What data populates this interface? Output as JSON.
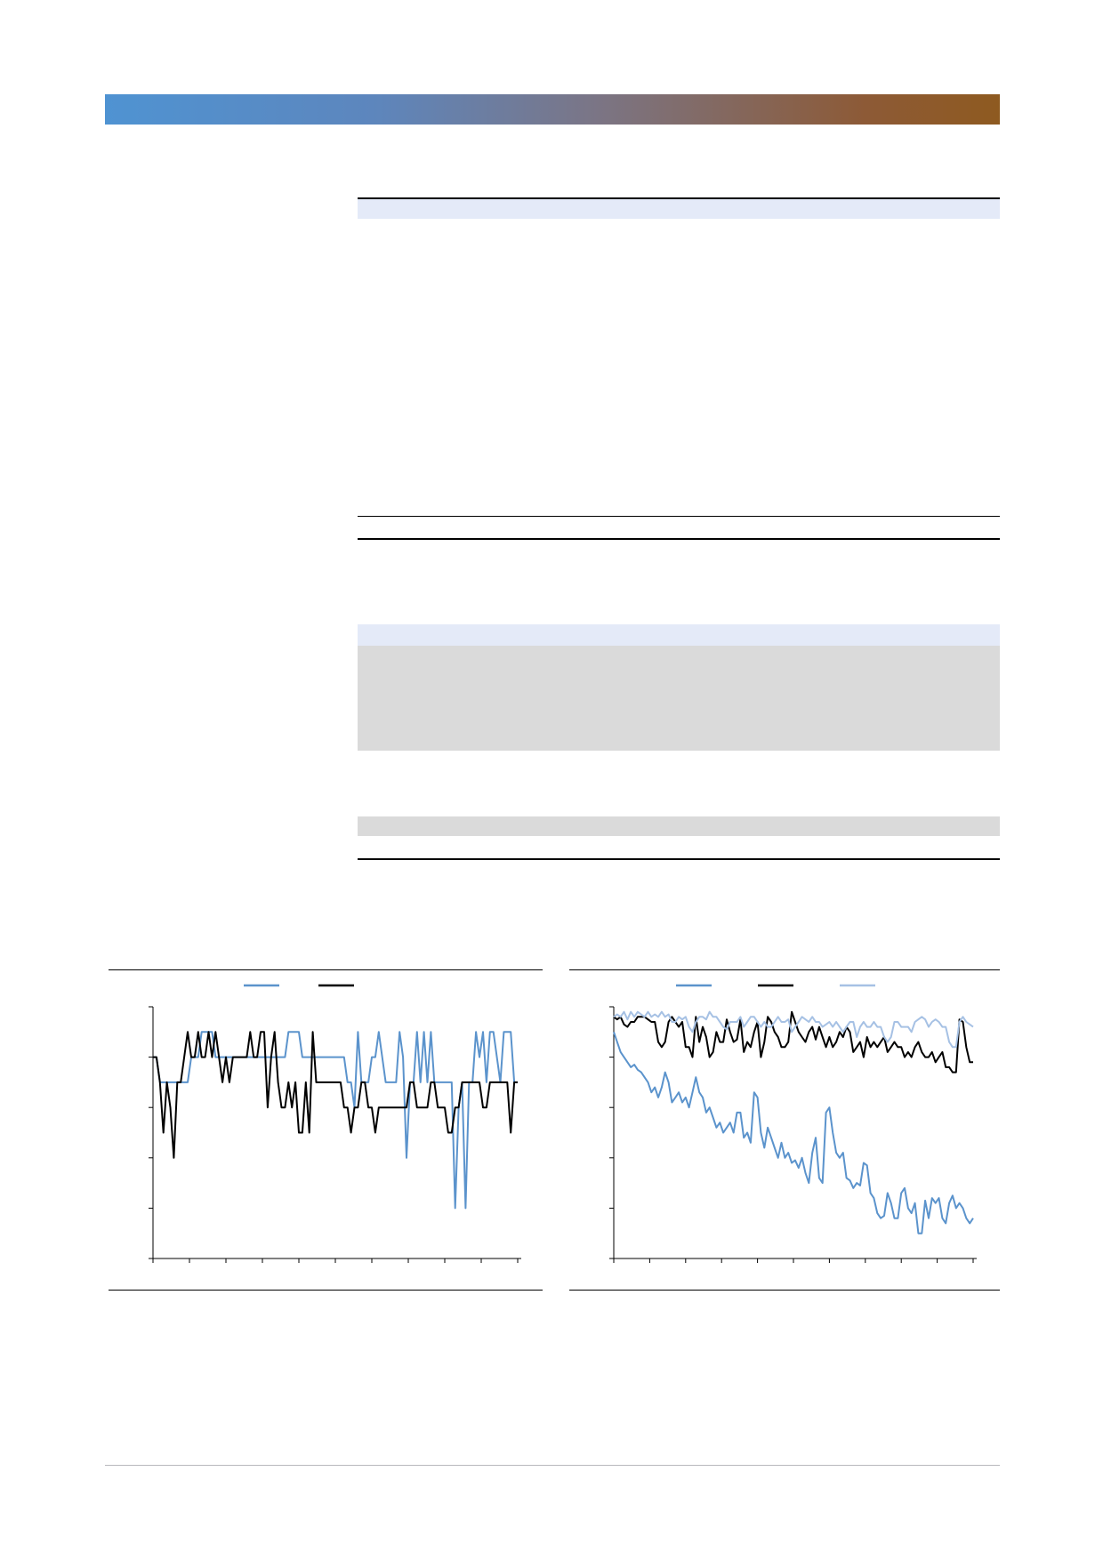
{
  "colors": {
    "header_gradient_start": "#4f93d2",
    "header_gradient_end": "#8e5a20",
    "table_header_band": "#e4eaf8",
    "table_shaded_band": "#dadada",
    "series_blue": "#5b93cc",
    "series_black": "#000000",
    "series_light_blue": "#a6c1e4",
    "footer_rule": "#b8b8bc"
  },
  "chart_data": [
    {
      "type": "line",
      "title": "",
      "xlabel": "",
      "ylabel": "",
      "x": [
        0,
        1,
        2,
        3,
        4,
        5,
        6,
        7,
        8,
        9,
        10,
        11,
        12,
        13,
        14,
        15,
        16,
        17,
        18,
        19,
        20,
        21,
        22,
        23,
        24,
        25,
        26,
        27,
        28,
        29,
        30,
        31,
        32,
        33,
        34,
        35,
        36,
        37,
        38,
        39,
        40,
        41,
        42,
        43,
        44,
        45,
        46,
        47,
        48,
        49,
        50,
        51,
        52,
        53,
        54,
        55,
        56,
        57,
        58,
        59,
        60,
        61,
        62,
        63,
        64,
        65,
        66,
        67,
        68,
        69,
        70,
        71,
        72,
        73,
        74,
        75,
        76,
        77,
        78,
        79,
        80,
        81,
        82,
        83,
        84,
        85,
        86,
        87,
        88,
        89,
        90,
        91,
        92,
        93,
        94,
        95,
        96,
        97,
        98,
        99,
        100,
        101,
        102,
        103,
        104,
        105
      ],
      "ylim": [
        0,
        5
      ],
      "x_tick_count": 11,
      "y_tick_count": 6,
      "legend": "top-center",
      "series": [
        {
          "color": "#5b93cc",
          "values": [
            4,
            4,
            3.5,
            3.5,
            3.5,
            3.5,
            3.5,
            3.5,
            3.5,
            3.5,
            3.5,
            4,
            4,
            4,
            4.5,
            4.5,
            4.5,
            4.5,
            4,
            4,
            4,
            4,
            4,
            4,
            4,
            4,
            4,
            4,
            4,
            4,
            4,
            4,
            4,
            4,
            4,
            4,
            4,
            4,
            4,
            4.5,
            4.5,
            4.5,
            4.5,
            4,
            4,
            4,
            4,
            4,
            4,
            4,
            4,
            4,
            4,
            4,
            4,
            4,
            3.5,
            3.5,
            3,
            4.5,
            3.5,
            3.5,
            3.5,
            4,
            4,
            4.5,
            4,
            3.5,
            3.5,
            3.5,
            3.5,
            4.5,
            4,
            2,
            3.5,
            3.5,
            4.5,
            3.5,
            4.5,
            3.5,
            4.5,
            3.5,
            3.5,
            3.5,
            3.5,
            3.5,
            3.5,
            1,
            3,
            3.5,
            1,
            3.5,
            3.5,
            4.5,
            4,
            4.5,
            3.5,
            4.5,
            4.5,
            4,
            3.5,
            4.5,
            4.5,
            4.5,
            3.5,
            3.5
          ],
          "label": ""
        },
        {
          "color": "#000000",
          "values": [
            4,
            4,
            3.5,
            2.5,
            3.5,
            3,
            2,
            3.5,
            3.5,
            4,
            4.5,
            4,
            4,
            4.5,
            4,
            4,
            4.5,
            4,
            4.5,
            4,
            3.5,
            4,
            3.5,
            4,
            4,
            4,
            4,
            4,
            4.5,
            4,
            4,
            4.5,
            4.5,
            3,
            4,
            4.5,
            3.5,
            3,
            3,
            3.5,
            3,
            3.5,
            2.5,
            2.5,
            3.5,
            2.5,
            4.5,
            3.5,
            3.5,
            3.5,
            3.5,
            3.5,
            3.5,
            3.5,
            3.5,
            3,
            3,
            2.5,
            3,
            3,
            3.5,
            3.5,
            3,
            3,
            2.5,
            3,
            3,
            3,
            3,
            3,
            3,
            3,
            3,
            3,
            3.5,
            3.5,
            3,
            3,
            3,
            3,
            3.5,
            3.5,
            3,
            3,
            3,
            2.5,
            2.5,
            3,
            3,
            3.5,
            3.5,
            3.5,
            3.5,
            3.5,
            3.5,
            3,
            3,
            3.5,
            3.5,
            3.5,
            3.5,
            3.5,
            3.5,
            2.5,
            3.5,
            3.5
          ],
          "label": ""
        }
      ]
    },
    {
      "type": "line",
      "title": "",
      "xlabel": "",
      "ylabel": "",
      "x": [
        0,
        1,
        2,
        3,
        4,
        5,
        6,
        7,
        8,
        9,
        10,
        11,
        12,
        13,
        14,
        15,
        16,
        17,
        18,
        19,
        20,
        21,
        22,
        23,
        24,
        25,
        26,
        27,
        28,
        29,
        30,
        31,
        32,
        33,
        34,
        35,
        36,
        37,
        38,
        39,
        40,
        41,
        42,
        43,
        44,
        45,
        46,
        47,
        48,
        49,
        50,
        51,
        52,
        53,
        54,
        55,
        56,
        57,
        58,
        59,
        60,
        61,
        62,
        63,
        64,
        65,
        66,
        67,
        68,
        69,
        70,
        71,
        72,
        73,
        74,
        75,
        76,
        77,
        78,
        79,
        80,
        81,
        82,
        83,
        84,
        85,
        86,
        87,
        88,
        89,
        90,
        91,
        92,
        93,
        94,
        95,
        96,
        97,
        98,
        99,
        100,
        101,
        102,
        103,
        104,
        105
      ],
      "ylim": [
        0,
        5
      ],
      "x_tick_count": 11,
      "y_tick_count": 6,
      "legend": "top-center",
      "series": [
        {
          "color": "#5b93cc",
          "values": [
            4.5,
            4.3,
            4.1,
            4.0,
            3.9,
            3.8,
            3.85,
            3.75,
            3.7,
            3.6,
            3.5,
            3.3,
            3.4,
            3.2,
            3.4,
            3.7,
            3.5,
            3.1,
            3.2,
            3.3,
            3.1,
            3.2,
            3.0,
            3.3,
            3.6,
            3.3,
            3.2,
            2.9,
            3.0,
            2.8,
            2.6,
            2.7,
            2.5,
            2.6,
            2.7,
            2.5,
            2.9,
            2.9,
            2.4,
            2.5,
            2.3,
            3.3,
            3.2,
            2.5,
            2.2,
            2.6,
            2.4,
            2.2,
            2.0,
            2.3,
            2.0,
            2.1,
            1.9,
            1.95,
            1.8,
            2.0,
            1.7,
            1.5,
            2.1,
            2.4,
            1.6,
            1.5,
            2.9,
            3.0,
            2.5,
            2.1,
            2.0,
            2.1,
            1.6,
            1.55,
            1.4,
            1.5,
            1.45,
            1.9,
            1.85,
            1.3,
            1.2,
            0.9,
            0.8,
            0.85,
            1.3,
            1.1,
            0.8,
            0.8,
            1.3,
            1.4,
            1.0,
            0.9,
            1.1,
            0.5,
            0.5,
            1.15,
            0.8,
            1.2,
            1.1,
            1.2,
            0.8,
            0.7,
            1.1,
            1.25,
            1.0,
            1.1,
            1.0,
            0.8,
            0.7,
            0.8
          ],
          "label": ""
        },
        {
          "color": "#000000",
          "values": [
            4.8,
            4.75,
            4.8,
            4.65,
            4.6,
            4.7,
            4.7,
            4.8,
            4.8,
            4.8,
            4.75,
            4.7,
            4.7,
            4.3,
            4.2,
            4.3,
            4.7,
            4.8,
            4.7,
            4.6,
            4.7,
            4.2,
            4.2,
            4.0,
            4.8,
            4.3,
            4.6,
            4.4,
            4.0,
            4.1,
            4.5,
            4.3,
            4.3,
            4.75,
            4.5,
            4.3,
            4.35,
            4.75,
            4.1,
            4.3,
            4.2,
            4.5,
            4.7,
            4.0,
            4.3,
            4.8,
            4.7,
            4.5,
            4.4,
            4.2,
            4.2,
            4.3,
            4.9,
            4.7,
            4.5,
            4.4,
            4.3,
            4.5,
            4.6,
            4.35,
            4.6,
            4.4,
            4.2,
            4.4,
            4.2,
            4.3,
            4.5,
            4.4,
            4.6,
            4.5,
            4.1,
            4.2,
            4.3,
            4.0,
            4.4,
            4.2,
            4.3,
            4.2,
            4.3,
            4.4,
            4.1,
            4.2,
            4.3,
            4.2,
            4.2,
            4.0,
            4.1,
            4.0,
            4.2,
            4.3,
            4.1,
            4.0,
            4.0,
            4.1,
            3.9,
            4.0,
            4.1,
            3.8,
            3.8,
            3.7,
            3.7,
            4.75,
            4.7,
            4.2,
            3.9,
            3.9
          ],
          "label": ""
        },
        {
          "color": "#a6c1e4",
          "values": [
            4.8,
            4.85,
            4.8,
            4.9,
            4.75,
            4.9,
            4.8,
            4.9,
            4.85,
            4.8,
            4.9,
            4.8,
            4.85,
            4.8,
            4.9,
            4.8,
            4.85,
            4.7,
            4.7,
            4.8,
            4.75,
            4.8,
            4.6,
            4.5,
            4.7,
            4.8,
            4.8,
            4.75,
            4.9,
            4.8,
            4.8,
            4.7,
            4.6,
            4.55,
            4.7,
            4.7,
            4.7,
            4.8,
            4.6,
            4.7,
            4.8,
            4.8,
            4.7,
            4.6,
            4.7,
            4.6,
            4.6,
            4.7,
            4.8,
            4.7,
            4.7,
            4.75,
            4.5,
            4.6,
            4.7,
            4.8,
            4.75,
            4.7,
            4.8,
            4.7,
            4.7,
            4.6,
            4.65,
            4.7,
            4.6,
            4.7,
            4.6,
            4.5,
            4.6,
            4.7,
            4.7,
            4.4,
            4.6,
            4.7,
            4.6,
            4.6,
            4.7,
            4.6,
            4.6,
            4.4,
            4.3,
            4.4,
            4.7,
            4.7,
            4.6,
            4.6,
            4.6,
            4.5,
            4.7,
            4.75,
            4.8,
            4.75,
            4.6,
            4.7,
            4.75,
            4.7,
            4.6,
            4.6,
            4.3,
            4.2,
            4.2,
            4.7,
            4.8,
            4.7,
            4.65,
            4.6
          ],
          "label": ""
        }
      ]
    }
  ]
}
